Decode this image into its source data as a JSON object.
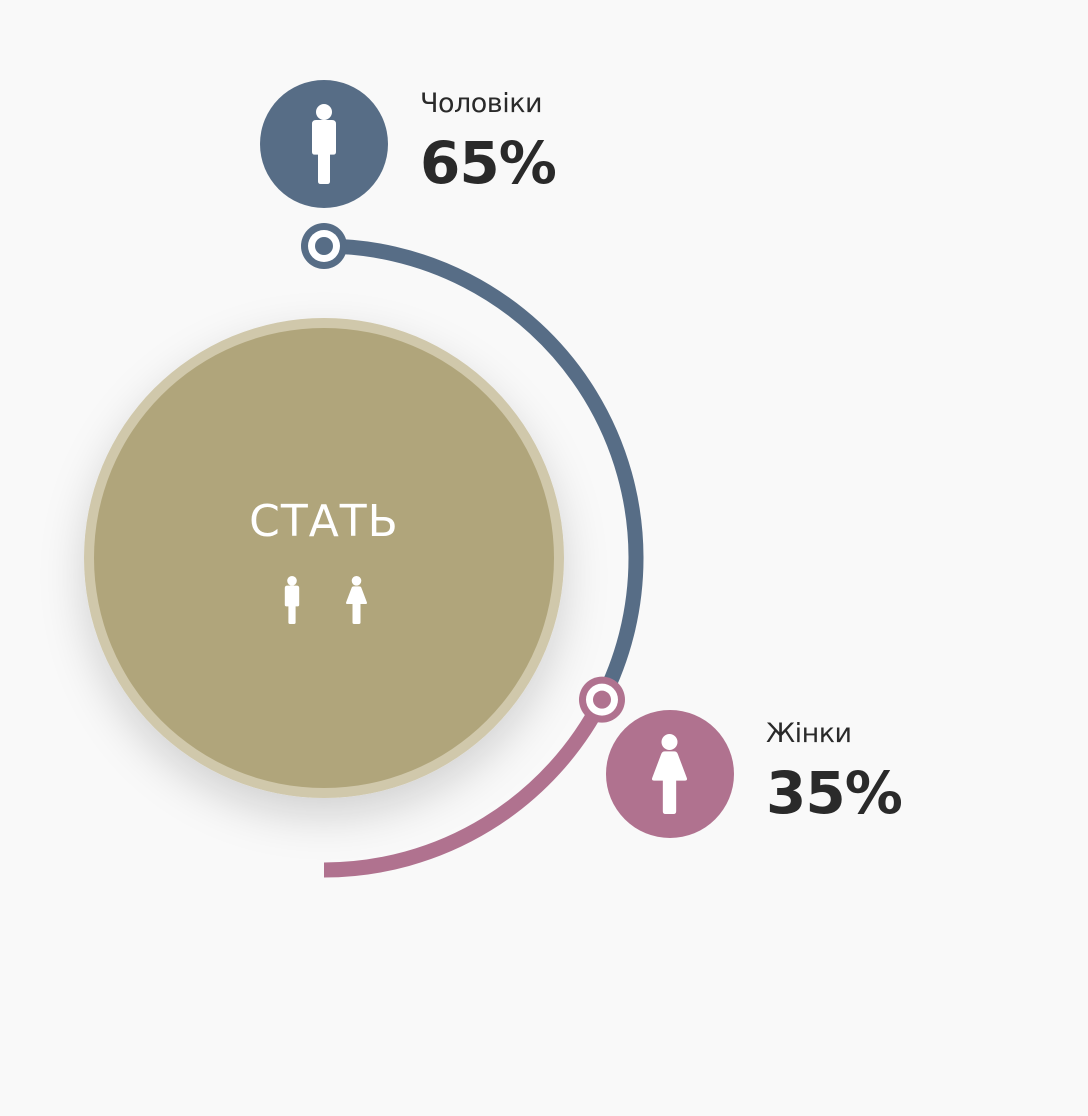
{
  "colors": {
    "background": "#f9f9f9",
    "center_fill": "#b0a57b",
    "center_ring": "#d0c8ab",
    "men": "#576d86",
    "women": "#b0728f",
    "text": "#2a2a2a"
  },
  "center": {
    "title": "СТАТЬ",
    "icons": [
      "male-icon",
      "female-icon"
    ]
  },
  "chart_data": {
    "type": "pie",
    "title": "СТАТЬ",
    "categories": [
      "Чоловіки",
      "Жінки"
    ],
    "values": [
      65,
      35
    ],
    "series": [
      {
        "name": "Чоловіки",
        "value": 65,
        "label": "65%",
        "color": "#576d86",
        "icon": "male-icon"
      },
      {
        "name": "Жінки",
        "value": 35,
        "label": "35%",
        "color": "#b0728f",
        "icon": "female-icon"
      }
    ],
    "legend": "beside-arc-endpoints"
  }
}
